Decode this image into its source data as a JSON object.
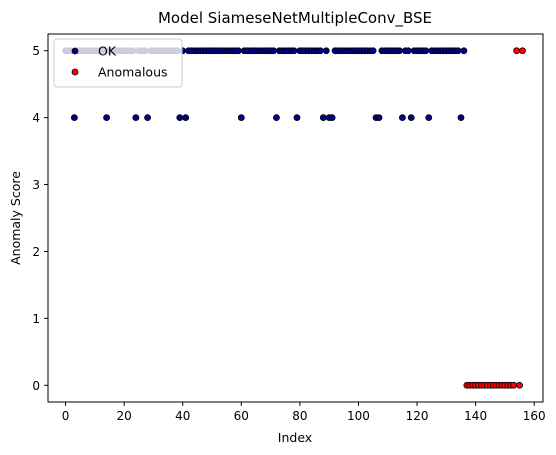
{
  "chart_data": {
    "type": "scatter",
    "title": "Model SiameseNetMultipleConv_BSE",
    "xlabel": "Index",
    "ylabel": "Anomaly Score",
    "xlim": [
      -6,
      163
    ],
    "ylim": [
      -0.25,
      5.25
    ],
    "xticks": [
      0,
      20,
      40,
      60,
      80,
      100,
      120,
      140,
      160
    ],
    "yticks": [
      0,
      1,
      2,
      3,
      4,
      5
    ],
    "grid": false,
    "legend_position": "top-left",
    "series": [
      {
        "name": "OK",
        "color": "#00008b",
        "points": [
          [
            0,
            5
          ],
          [
            1,
            5
          ],
          [
            2,
            5
          ],
          [
            3,
            4
          ],
          [
            4,
            5
          ],
          [
            5,
            5
          ],
          [
            6,
            5
          ],
          [
            7,
            5
          ],
          [
            8,
            5
          ],
          [
            9,
            5
          ],
          [
            10,
            5
          ],
          [
            11,
            5
          ],
          [
            12,
            5
          ],
          [
            13,
            5
          ],
          [
            14,
            4
          ],
          [
            15,
            5
          ],
          [
            16,
            5
          ],
          [
            17,
            5
          ],
          [
            18,
            5
          ],
          [
            19,
            5
          ],
          [
            20,
            5
          ],
          [
            21,
            5
          ],
          [
            22,
            5
          ],
          [
            23,
            5
          ],
          [
            24,
            4
          ],
          [
            25,
            5
          ],
          [
            26,
            5
          ],
          [
            27,
            5
          ],
          [
            28,
            4
          ],
          [
            29,
            5
          ],
          [
            30,
            5
          ],
          [
            31,
            5
          ],
          [
            32,
            5
          ],
          [
            33,
            5
          ],
          [
            34,
            5
          ],
          [
            35,
            5
          ],
          [
            36,
            5
          ],
          [
            37,
            5
          ],
          [
            38,
            5
          ],
          [
            39,
            4
          ],
          [
            40,
            5
          ],
          [
            41,
            4
          ],
          [
            42,
            5
          ],
          [
            43,
            5
          ],
          [
            44,
            5
          ],
          [
            45,
            5
          ],
          [
            46,
            5
          ],
          [
            47,
            5
          ],
          [
            48,
            5
          ],
          [
            49,
            5
          ],
          [
            50,
            5
          ],
          [
            51,
            5
          ],
          [
            52,
            5
          ],
          [
            53,
            5
          ],
          [
            54,
            5
          ],
          [
            55,
            5
          ],
          [
            56,
            5
          ],
          [
            57,
            5
          ],
          [
            58,
            5
          ],
          [
            59,
            5
          ],
          [
            60,
            4
          ],
          [
            61,
            5
          ],
          [
            62,
            5
          ],
          [
            63,
            5
          ],
          [
            64,
            5
          ],
          [
            65,
            5
          ],
          [
            66,
            5
          ],
          [
            67,
            5
          ],
          [
            68,
            5
          ],
          [
            69,
            5
          ],
          [
            70,
            5
          ],
          [
            71,
            5
          ],
          [
            72,
            4
          ],
          [
            73,
            5
          ],
          [
            74,
            5
          ],
          [
            75,
            5
          ],
          [
            76,
            5
          ],
          [
            77,
            5
          ],
          [
            78,
            5
          ],
          [
            79,
            4
          ],
          [
            80,
            5
          ],
          [
            81,
            5
          ],
          [
            82,
            5
          ],
          [
            83,
            5
          ],
          [
            84,
            5
          ],
          [
            85,
            5
          ],
          [
            86,
            5
          ],
          [
            87,
            5
          ],
          [
            88,
            4
          ],
          [
            89,
            5
          ],
          [
            90,
            4
          ],
          [
            91,
            4
          ],
          [
            92,
            5
          ],
          [
            93,
            5
          ],
          [
            94,
            5
          ],
          [
            95,
            5
          ],
          [
            96,
            5
          ],
          [
            97,
            5
          ],
          [
            98,
            5
          ],
          [
            99,
            5
          ],
          [
            100,
            5
          ],
          [
            101,
            5
          ],
          [
            102,
            5
          ],
          [
            103,
            5
          ],
          [
            104,
            5
          ],
          [
            105,
            5
          ],
          [
            106,
            4
          ],
          [
            107,
            4
          ],
          [
            108,
            5
          ],
          [
            109,
            5
          ],
          [
            110,
            5
          ],
          [
            111,
            5
          ],
          [
            112,
            5
          ],
          [
            113,
            5
          ],
          [
            114,
            5
          ],
          [
            115,
            4
          ],
          [
            116,
            5
          ],
          [
            117,
            5
          ],
          [
            118,
            4
          ],
          [
            119,
            5
          ],
          [
            120,
            5
          ],
          [
            121,
            5
          ],
          [
            122,
            5
          ],
          [
            123,
            5
          ],
          [
            124,
            4
          ],
          [
            125,
            5
          ],
          [
            126,
            5
          ],
          [
            127,
            5
          ],
          [
            128,
            5
          ],
          [
            129,
            5
          ],
          [
            130,
            5
          ],
          [
            131,
            5
          ],
          [
            132,
            5
          ],
          [
            133,
            5
          ],
          [
            134,
            5
          ],
          [
            135,
            4
          ],
          [
            136,
            5
          ]
        ]
      },
      {
        "name": "Anomalous",
        "color": "#ff0000",
        "points": [
          [
            137,
            0
          ],
          [
            138,
            0
          ],
          [
            139,
            0
          ],
          [
            140,
            0
          ],
          [
            141,
            0
          ],
          [
            142,
            0
          ],
          [
            143,
            0
          ],
          [
            144,
            0
          ],
          [
            145,
            0
          ],
          [
            146,
            0
          ],
          [
            147,
            0
          ],
          [
            148,
            0
          ],
          [
            149,
            0
          ],
          [
            150,
            0
          ],
          [
            151,
            0
          ],
          [
            152,
            0
          ],
          [
            153,
            0
          ],
          [
            154,
            5
          ],
          [
            155,
            0
          ],
          [
            156,
            5
          ]
        ]
      }
    ]
  }
}
